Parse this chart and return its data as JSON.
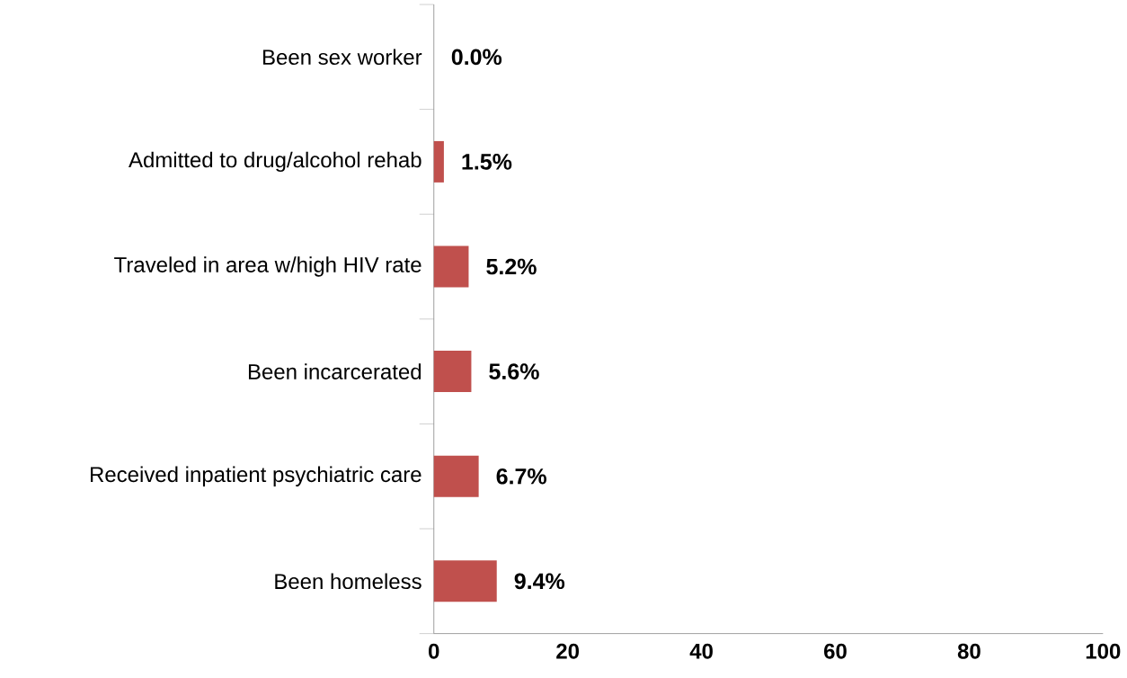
{
  "chart_data": {
    "type": "bar",
    "orientation": "horizontal",
    "categories": [
      "Been sex worker",
      "Admitted to drug/alcohol rehab",
      "Traveled in area w/high HIV rate",
      "Been incarcerated",
      "Received inpatient psychiatric care",
      "Been homeless"
    ],
    "values": [
      0.0,
      1.5,
      5.2,
      5.6,
      6.7,
      9.4
    ],
    "value_labels": [
      "0.0%",
      "1.5%",
      "5.2%",
      "5.6%",
      "6.7%",
      "9.4%"
    ],
    "color": "#c0504d",
    "xlim": [
      0,
      100
    ],
    "xticks": [
      0,
      20,
      40,
      60,
      80,
      100
    ],
    "grid": false
  }
}
